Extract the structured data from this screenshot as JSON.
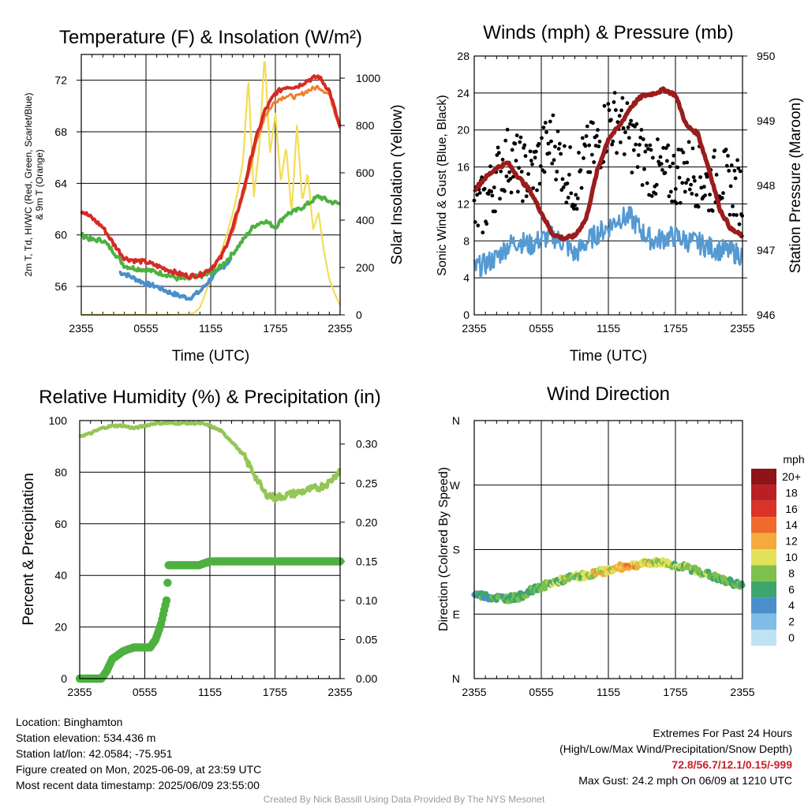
{
  "chart_data": [
    {
      "type": "line",
      "title": "Temperature (F) & Insolation (W/m²)",
      "ylabel_left_lines": [
        "2m T, Td, HI/WC (Red, Green, Scarlet/Blue)",
        "& 9m T (Orange)"
      ],
      "ylabel_right": "Solar Insolation (Yellow)",
      "xlabel": "Time (UTC)",
      "xticks": [
        "2355",
        "0555",
        "1155",
        "1755",
        "2355"
      ],
      "ylim_left": [
        53.8,
        74
      ],
      "yticks_left": [
        56,
        60,
        64,
        68,
        72
      ],
      "ylim_right": [
        0,
        1100
      ],
      "yticks_right": [
        0,
        200,
        400,
        600,
        800,
        1000
      ],
      "grid": true,
      "colors": {
        "temp": "#d52b26",
        "temp9m": "#f07f2a",
        "dewpoint": "#4db140",
        "windchill": "#4a8fcb",
        "insolation": "#f2dd55"
      },
      "series": [
        {
          "key": "temp",
          "axis": "left",
          "x": [
            0,
            1,
            2,
            3,
            4,
            5,
            6,
            7,
            8,
            9,
            10,
            11,
            12,
            13,
            14,
            15,
            16,
            17,
            18,
            19,
            20,
            21,
            22,
            23,
            24
          ],
          "values": [
            61.9,
            61.3,
            60.6,
            59.3,
            58.2,
            58.0,
            57.9,
            57.6,
            57.3,
            57.0,
            56.8,
            56.9,
            57.4,
            58.3,
            60.4,
            63.3,
            66.9,
            69.6,
            71.0,
            71.5,
            71.5,
            72.0,
            72.3,
            71.2,
            68.3
          ]
        },
        {
          "key": "temp9m",
          "axis": "left",
          "x": [
            14,
            15,
            16,
            17,
            18,
            19,
            20,
            21,
            22,
            23,
            24
          ],
          "values": [
            60.2,
            63.0,
            66.5,
            69.2,
            70.4,
            70.8,
            70.7,
            71.2,
            71.5,
            70.9,
            68.3
          ]
        },
        {
          "key": "dewpoint",
          "axis": "left",
          "x": [
            0,
            1,
            2,
            3,
            4,
            5,
            6,
            7,
            8,
            9,
            10,
            11,
            12,
            13,
            14,
            15,
            16,
            17,
            18,
            19,
            20,
            21,
            22,
            23,
            24
          ],
          "values": [
            60.0,
            59.6,
            59.6,
            58.7,
            57.6,
            57.4,
            57.3,
            57.1,
            56.9,
            56.6,
            56.6,
            56.8,
            57.0,
            57.6,
            58.5,
            59.6,
            60.7,
            61.1,
            60.6,
            61.6,
            61.9,
            62.4,
            63.0,
            62.6,
            62.4
          ]
        },
        {
          "key": "windchill",
          "axis": "left",
          "x": [
            3.5,
            4,
            5,
            6,
            7,
            8,
            9,
            10,
            11,
            12,
            13,
            14
          ],
          "values": [
            57.1,
            57.0,
            56.6,
            56.2,
            56.0,
            55.6,
            55.3,
            55.1,
            55.6,
            56.6,
            57.4,
            58.2
          ]
        },
        {
          "key": "insolation",
          "axis": "right",
          "x": [
            0,
            6,
            8,
            9,
            10,
            10.5,
            11,
            11.5,
            12,
            12.5,
            13,
            13.5,
            14,
            14.5,
            15,
            15.5,
            16,
            16.5,
            17,
            17.5,
            18,
            18.5,
            19,
            19.5,
            20,
            20.5,
            21,
            21.5,
            22,
            22.5,
            23,
            23.5,
            24
          ],
          "values": [
            0,
            0,
            0,
            1,
            2,
            10,
            30,
            90,
            150,
            210,
            270,
            340,
            420,
            520,
            650,
            1000,
            500,
            700,
            1100,
            680,
            850,
            560,
            710,
            430,
            800,
            480,
            600,
            360,
            430,
            270,
            150,
            90,
            40
          ]
        }
      ]
    },
    {
      "type": "line",
      "title": "Winds (mph) & Pressure (mb)",
      "ylabel_left": "Sonic Wind & Gust (Blue, Black)",
      "ylabel_right": "Station Pressure (Maroon)",
      "xlabel": "Time (UTC)",
      "xticks": [
        "2355",
        "0555",
        "1155",
        "1755",
        "2355"
      ],
      "ylim_left": [
        0,
        28
      ],
      "yticks_left": [
        0,
        4,
        8,
        12,
        16,
        20,
        24,
        28
      ],
      "ylim_right": [
        946,
        950
      ],
      "yticks_right": [
        946,
        947,
        948,
        949,
        950
      ],
      "grid": true,
      "colors": {
        "wind": "#5499d2",
        "gust": "#000000",
        "pressure": "#9b1c1c"
      },
      "series": [
        {
          "key": "wind",
          "axis": "left",
          "x": [
            0,
            1,
            2,
            3,
            4,
            5,
            6,
            7,
            8,
            9,
            10,
            11,
            12,
            13,
            14,
            15,
            16,
            17,
            18,
            19,
            20,
            21,
            22,
            23,
            24
          ],
          "values": [
            5.0,
            5.5,
            6.2,
            7.5,
            8.0,
            7.5,
            8.2,
            8.5,
            7.8,
            6.5,
            7.8,
            8.8,
            9.5,
            10.5,
            10.5,
            9.0,
            8.0,
            8.3,
            8.5,
            8.0,
            7.8,
            7.3,
            7.0,
            6.8,
            6.5
          ]
        },
        {
          "key": "gust",
          "axis": "left",
          "x": [
            0,
            1,
            2,
            3,
            4,
            5,
            6,
            7,
            8,
            9,
            10,
            11,
            12,
            13,
            14,
            15,
            16,
            17,
            18,
            19,
            20,
            21,
            22,
            23,
            24
          ],
          "values": [
            11,
            12,
            15,
            17,
            16,
            15,
            17,
            19,
            16,
            14,
            17,
            18,
            21,
            21,
            19,
            17,
            16,
            15,
            15,
            16,
            15,
            14,
            15,
            14,
            13
          ]
        },
        {
          "key": "pressure",
          "axis": "right",
          "x": [
            0,
            1,
            2,
            3,
            4,
            5,
            6,
            7,
            8,
            9,
            10,
            11,
            12,
            13,
            14,
            15,
            16,
            17,
            18,
            19,
            20,
            21,
            22,
            23,
            24
          ],
          "values": [
            947.93,
            948.12,
            948.27,
            948.35,
            948.12,
            947.92,
            947.58,
            947.25,
            947.18,
            947.22,
            947.48,
            948.22,
            948.72,
            948.92,
            949.21,
            949.38,
            949.42,
            949.48,
            949.4,
            948.92,
            948.8,
            948.25,
            947.62,
            947.32,
            947.22
          ]
        }
      ]
    },
    {
      "type": "line",
      "title": "Relative Humidity (%) & Precipitation (in)",
      "ylabel_left": "Percent & Precipitation",
      "xticks": [
        "2355",
        "0555",
        "1155",
        "1755",
        "2355"
      ],
      "ylim_left": [
        0,
        100
      ],
      "yticks_left": [
        0,
        20,
        40,
        60,
        80,
        100
      ],
      "ylim_right": [
        0,
        0.33
      ],
      "yticks_right": [
        "0.00",
        "0.05",
        "0.10",
        "0.15",
        "0.20",
        "0.25",
        "0.30"
      ],
      "grid": true,
      "colors": {
        "rh": "#93c656",
        "precip": "#4db140"
      },
      "series": [
        {
          "key": "rh",
          "axis": "left",
          "x": [
            0,
            1,
            2,
            3,
            4,
            5,
            6,
            7,
            8,
            9,
            10,
            11,
            12,
            13,
            14,
            15,
            16,
            17,
            18,
            19,
            20,
            21,
            22,
            23,
            24
          ],
          "values": [
            94,
            95,
            97,
            98,
            98,
            97,
            98,
            99,
            99,
            99,
            99,
            99,
            98,
            96,
            92,
            87,
            80,
            72,
            70,
            71,
            72,
            73,
            74,
            76,
            81
          ]
        },
        {
          "key": "precip",
          "axis": "right",
          "x": [
            0,
            1,
            2,
            2.5,
            3,
            3.5,
            4,
            5,
            6,
            6.5,
            7,
            7.5,
            8,
            8.2,
            9,
            10,
            11,
            12,
            15,
            18,
            21,
            24
          ],
          "values": [
            0,
            0,
            0,
            0.01,
            0.025,
            0.03,
            0.035,
            0.04,
            0.04,
            0.04,
            0.05,
            0.07,
            0.1,
            0.145,
            0.145,
            0.145,
            0.145,
            0.15,
            0.15,
            0.15,
            0.15,
            0.15
          ]
        }
      ]
    },
    {
      "type": "scatter",
      "title": "Wind Direction",
      "ylabel_left": "Direction (Colored By Speed)",
      "xticks": [
        "2355",
        "0555",
        "1155",
        "1755",
        "2355"
      ],
      "yticks_left": [
        "N",
        "E",
        "S",
        "W",
        "N"
      ],
      "ylim_left": [
        0,
        360
      ],
      "grid": true,
      "legend_title": "mph",
      "legend_labels": [
        "0",
        "2",
        "4",
        "6",
        "8",
        "10",
        "12",
        "14",
        "16",
        "18",
        "20+"
      ],
      "legend_colors": [
        "#bfe3f5",
        "#7fbde6",
        "#4a8fcb",
        "#3ea56e",
        "#7dc04b",
        "#e3e05a",
        "#f5aa3c",
        "#ef6a2c",
        "#da3329",
        "#bb1f24",
        "#8e1419"
      ],
      "series": [
        {
          "key": "direction",
          "x": [
            0,
            1,
            2,
            3,
            4,
            5,
            6,
            7,
            8,
            9,
            10,
            11,
            12,
            13,
            14,
            15,
            16,
            17,
            18,
            19,
            20,
            21,
            22,
            23,
            24
          ],
          "values": [
            118,
            115,
            113,
            112,
            114,
            122,
            128,
            134,
            138,
            142,
            144,
            148,
            151,
            155,
            158,
            160,
            162,
            162,
            158,
            155,
            150,
            145,
            138,
            134,
            130
          ],
          "speeds": [
            5,
            6,
            6,
            7,
            7,
            7,
            8,
            8,
            8,
            8,
            9,
            10,
            10,
            11,
            12,
            10,
            9,
            9,
            8,
            8,
            8,
            7,
            7,
            7,
            6
          ]
        }
      ]
    }
  ],
  "info": {
    "location": "Location: Binghamton",
    "elevation": "Station elevation: 534.436 m",
    "latlon": "Station lat/lon: 42.0584; -75.951",
    "created": "Figure created on Mon, 2025-06-09, at 23:59 UTC",
    "recent": "Most recent data timestamp: 2025/06/09 23:55:00"
  },
  "extremes": {
    "title": "Extremes For Past 24 Hours",
    "subtitle": "(High/Low/Max Wind/Precipitation/Snow Depth)",
    "values": "72.8/56.7/12.1/0.15/-999",
    "gust": "Max Gust: 24.2 mph On 06/09 at 1210 UTC"
  },
  "credit": "Created By Nick Bassill Using Data Provided By The NYS Mesonet"
}
